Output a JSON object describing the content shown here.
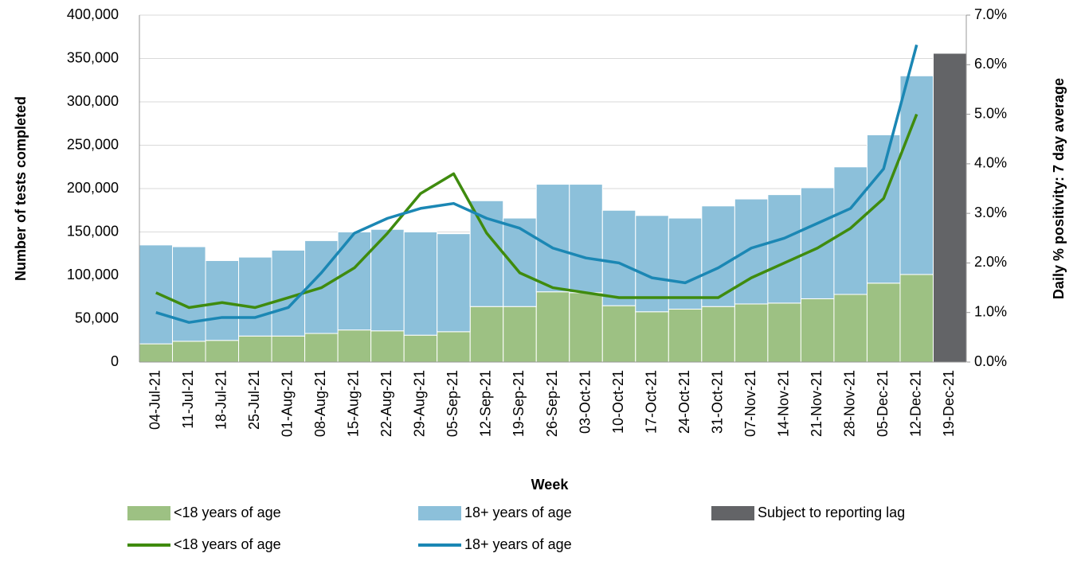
{
  "chart_data": {
    "type": "bar",
    "ylabel": "Number of tests completed",
    "y2label": "Daily % positivity:  7 day average",
    "xlabel": "Week",
    "categories": [
      "04-Jul-21",
      "11-Jul-21",
      "18-Jul-21",
      "25-Jul-21",
      "01-Aug-21",
      "08-Aug-21",
      "15-Aug-21",
      "22-Aug-21",
      "29-Aug-21",
      "05-Sep-21",
      "12-Sep-21",
      "19-Sep-21",
      "26-Sep-21",
      "03-Oct-21",
      "10-Oct-21",
      "17-Oct-21",
      "24-Oct-21",
      "31-Oct-21",
      "07-Nov-21",
      "14-Nov-21",
      "21-Nov-21",
      "28-Nov-21",
      "05-Dec-21",
      "12-Dec-21",
      "19-Dec-21"
    ],
    "series": [
      {
        "name": "<18 years of age",
        "type": "bar",
        "color": "#9dc183",
        "values": [
          21000,
          24000,
          25000,
          30000,
          30000,
          33000,
          37000,
          36000,
          31000,
          35000,
          64000,
          64000,
          81000,
          80000,
          65000,
          58000,
          61000,
          64000,
          67000,
          68000,
          73000,
          78000,
          91000,
          101000,
          null
        ]
      },
      {
        "name": "18+ years of age",
        "type": "bar",
        "color": "#8cc0da",
        "values": [
          114000,
          109000,
          92000,
          91000,
          99000,
          107000,
          113000,
          117000,
          119000,
          113000,
          122000,
          102000,
          124000,
          125000,
          110000,
          111000,
          105000,
          116000,
          121000,
          125000,
          128000,
          147000,
          171000,
          229000,
          null
        ]
      },
      {
        "name": "Subject to reporting lag",
        "type": "bar",
        "color": "#636467",
        "values": [
          null,
          null,
          null,
          null,
          null,
          null,
          null,
          null,
          null,
          null,
          null,
          null,
          null,
          null,
          null,
          null,
          null,
          null,
          null,
          null,
          null,
          null,
          null,
          null,
          356000
        ]
      },
      {
        "name": "<18 years of age",
        "type": "line",
        "axis": "y2",
        "color": "#3f8b0e",
        "values": [
          1.4,
          1.1,
          1.2,
          1.1,
          1.3,
          1.5,
          1.9,
          2.6,
          3.4,
          3.8,
          2.6,
          1.8,
          1.5,
          1.4,
          1.3,
          1.3,
          1.3,
          1.3,
          1.7,
          2.0,
          2.3,
          2.7,
          3.3,
          5.0,
          null
        ]
      },
      {
        "name": "18+ years of age",
        "type": "line",
        "axis": "y2",
        "color": "#1b87b4",
        "values": [
          1.0,
          0.8,
          0.9,
          0.9,
          1.1,
          1.8,
          2.6,
          2.9,
          3.1,
          3.2,
          2.9,
          2.7,
          2.3,
          2.1,
          2.0,
          1.7,
          1.6,
          1.9,
          2.3,
          2.5,
          2.8,
          3.1,
          3.9,
          6.4,
          null
        ]
      }
    ],
    "ylim": [
      0,
      400000
    ],
    "yticks": [
      0,
      {
        "value": 50000,
        "label": "50,000"
      },
      {
        "value": 100000,
        "label": "100,000"
      },
      {
        "value": 150000,
        "label": "150,000"
      },
      {
        "value": 200000,
        "label": "200,000"
      },
      {
        "value": 250000,
        "label": "250,000"
      },
      {
        "value": 300000,
        "label": "300,000"
      },
      {
        "value": 350000,
        "label": "350,000"
      },
      {
        "value": 400000,
        "label": "400,000"
      }
    ],
    "y2lim": [
      0,
      7
    ],
    "y2ticks": [
      {
        "value": 0,
        "label": "0.0%"
      },
      {
        "value": 1,
        "label": "1.0%"
      },
      {
        "value": 2,
        "label": "2.0%"
      },
      {
        "value": 3,
        "label": "3.0%"
      },
      {
        "value": 4,
        "label": "4.0%"
      },
      {
        "value": 5,
        "label": "5.0%"
      },
      {
        "value": 6,
        "label": "6.0%"
      },
      {
        "value": 7,
        "label": "7.0%"
      }
    ],
    "grid": true
  }
}
